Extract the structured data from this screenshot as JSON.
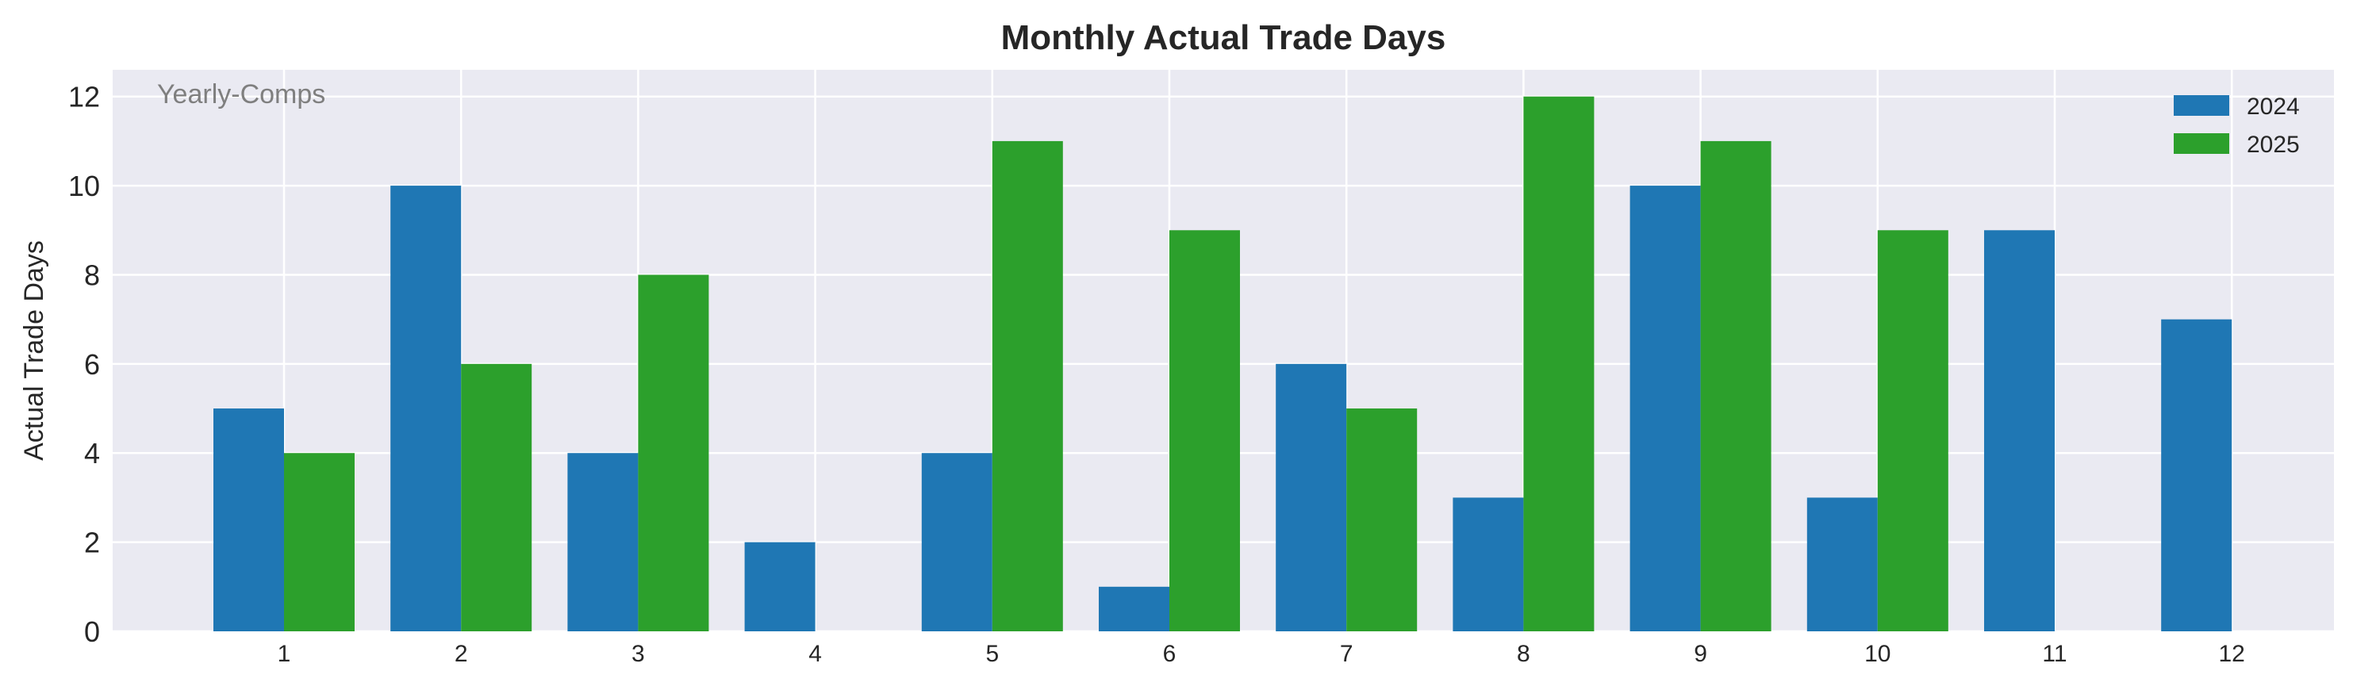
{
  "chart_data": {
    "type": "bar",
    "title": "Monthly Actual Trade Days",
    "xlabel": "",
    "ylabel": "Actual Trade Days",
    "annotation": "Yearly-Comps",
    "categories": [
      "1",
      "2",
      "3",
      "4",
      "5",
      "6",
      "7",
      "8",
      "9",
      "10",
      "11",
      "12"
    ],
    "series": [
      {
        "name": "2024",
        "color": "#1f77b4",
        "values": [
          5,
          10,
          4,
          2,
          4,
          1,
          6,
          3,
          10,
          3,
          9,
          7
        ]
      },
      {
        "name": "2025",
        "color": "#2ca02c",
        "values": [
          4,
          6,
          8,
          0,
          11,
          9,
          5,
          12,
          11,
          9,
          0,
          0
        ]
      }
    ],
    "ylim": [
      0,
      12.6
    ],
    "yticks": [
      0,
      2,
      4,
      6,
      8,
      10,
      12
    ],
    "grid": true,
    "legend_position": "top-right",
    "plot_background": "#eaeaf2"
  }
}
